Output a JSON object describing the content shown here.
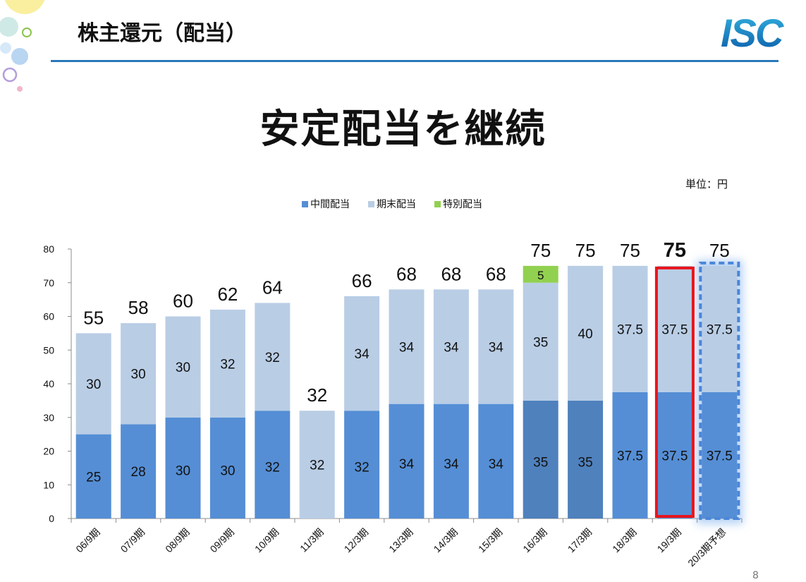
{
  "header": {
    "title": "株主還元（配当）",
    "logo_text": "ISC"
  },
  "main_title": "安定配当を継続",
  "unit_label": "単位：円",
  "page_number": "8",
  "colors": {
    "interim": "#558ed5",
    "interim_dark": "#4f81bd",
    "year_end": "#b9cde5",
    "special": "#92d050",
    "highlight_border": "#e8141c",
    "brand": "#2a78b8"
  },
  "chart_data": {
    "type": "bar",
    "stacked": true,
    "categories": [
      "06/9期",
      "07/9期",
      "08/9期",
      "09/9期",
      "10/9期",
      "11/3期",
      "12/3期",
      "13/3期",
      "14/3期",
      "15/3期",
      "16/3期",
      "17/3期",
      "18/3期",
      "19/3期",
      "20/3期予想"
    ],
    "series": [
      {
        "name": "中間配当",
        "values": [
          25,
          28,
          30,
          30,
          32,
          null,
          32,
          34,
          34,
          34,
          35,
          35,
          37.5,
          37.5,
          37.5
        ],
        "labels": [
          "25",
          "28",
          "30",
          "30",
          "32",
          "",
          "32",
          "34",
          "34",
          "34",
          "35",
          "35",
          "37.5",
          "37.5",
          "37.5"
        ]
      },
      {
        "name": "期末配当",
        "values": [
          30,
          30,
          30,
          32,
          32,
          32,
          34,
          34,
          34,
          34,
          35,
          40,
          37.5,
          37.5,
          37.5
        ],
        "labels": [
          "30",
          "30",
          "30",
          "32",
          "32",
          "32",
          "34",
          "34",
          "34",
          "34",
          "35",
          "40",
          "37.5",
          "37.5",
          "37.5"
        ]
      },
      {
        "name": "特別配当",
        "values": [
          null,
          null,
          null,
          null,
          null,
          null,
          null,
          null,
          null,
          null,
          5,
          null,
          null,
          null,
          null
        ],
        "labels": [
          "",
          "",
          "",
          "",
          "",
          "",
          "",
          "",
          "",
          "",
          "5",
          "",
          "",
          "",
          ""
        ]
      }
    ],
    "totals": [
      "55",
      "58",
      "60",
      "62",
      "64",
      "32",
      "66",
      "68",
      "68",
      "68",
      "75",
      "75",
      "75",
      "75",
      "75"
    ],
    "emphasized_total": "19/3期",
    "dark_interim_categories": [
      "16/3期",
      "17/3期"
    ],
    "highlighted_category": "19/3期",
    "forecast_category": "20/3期予想",
    "ylim": [
      0,
      80
    ],
    "yticks": [
      "0",
      "10",
      "20",
      "30",
      "40",
      "50",
      "60",
      "70",
      "80"
    ],
    "legend_position": "top",
    "grid": false
  }
}
